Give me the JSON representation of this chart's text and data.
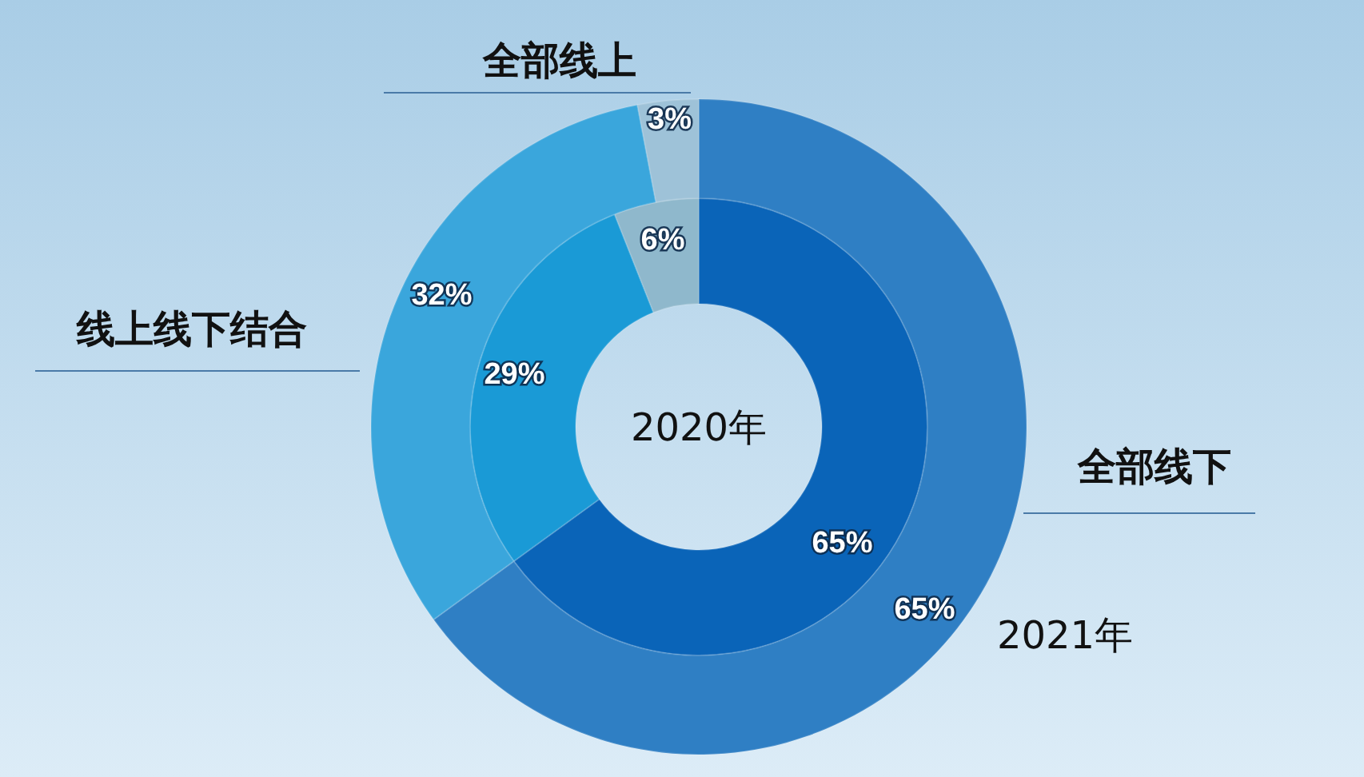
{
  "chart_data": {
    "type": "donut",
    "categories": [
      "全部线下",
      "线上线下结合",
      "全部线上"
    ],
    "series": [
      {
        "name": "2020年",
        "values": [
          65,
          29,
          6
        ],
        "value_labels": [
          "65%",
          "29%",
          "6%"
        ],
        "colors": [
          "#0a64b8",
          "#1a9ad6",
          "#8fb8cc"
        ]
      },
      {
        "name": "2021年",
        "values": [
          65,
          32,
          3
        ],
        "value_labels": [
          "65%",
          "32%",
          "3%"
        ],
        "colors": [
          "#2f7fc4",
          "#3aa6dc",
          "#9ec2d8"
        ]
      }
    ],
    "title": null
  }
}
